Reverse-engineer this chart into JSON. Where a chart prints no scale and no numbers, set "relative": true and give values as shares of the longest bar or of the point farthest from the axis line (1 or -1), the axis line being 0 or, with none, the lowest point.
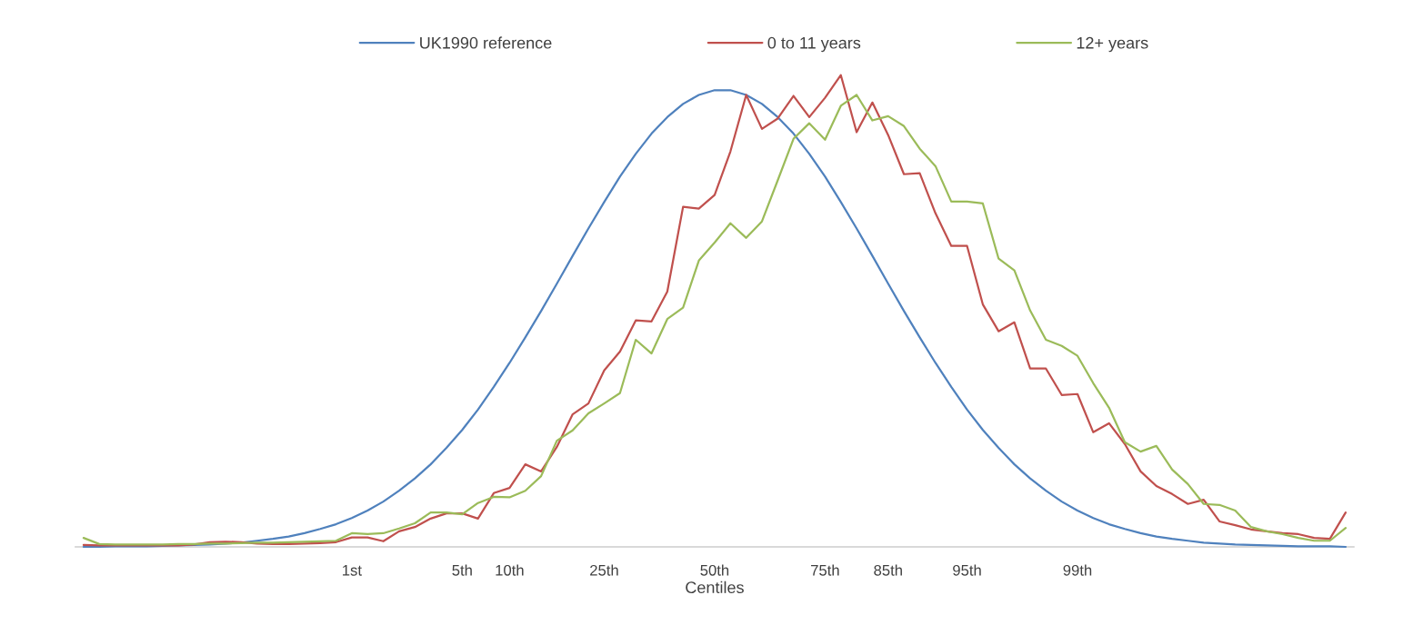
{
  "chart_data": {
    "type": "line",
    "xlabel": "Centiles",
    "relative": true,
    "legend": "top",
    "line_style": "solid",
    "categories": [
      null,
      null,
      null,
      null,
      null,
      null,
      null,
      null,
      null,
      null,
      null,
      null,
      null,
      null,
      null,
      null,
      null,
      "1st",
      null,
      null,
      null,
      null,
      null,
      null,
      "5th",
      null,
      null,
      "10th",
      null,
      null,
      null,
      null,
      null,
      "25th",
      null,
      null,
      null,
      null,
      null,
      null,
      "50th",
      null,
      null,
      null,
      null,
      null,
      null,
      "75th",
      null,
      null,
      null,
      "85th",
      null,
      null,
      null,
      null,
      "95th",
      null,
      null,
      null,
      null,
      null,
      null,
      "99th",
      null,
      null,
      null,
      null,
      null,
      null,
      null,
      null,
      null,
      null,
      null,
      null,
      null,
      null,
      null,
      null,
      null
    ],
    "series": [
      {
        "name": "UK1990 reference",
        "color": "#4f81bd",
        "values": [
          0,
          0,
          0.001,
          0.001,
          0.001,
          0.002,
          0.003,
          0.004,
          0.005,
          0.007,
          0.009,
          0.013,
          0.017,
          0.022,
          0.029,
          0.038,
          0.048,
          0.061,
          0.077,
          0.096,
          0.119,
          0.145,
          0.175,
          0.21,
          0.248,
          0.291,
          0.339,
          0.39,
          0.444,
          0.5,
          0.558,
          0.617,
          0.675,
          0.731,
          0.785,
          0.833,
          0.876,
          0.911,
          0.939,
          0.958,
          0.968,
          0.968,
          0.958,
          0.939,
          0.911,
          0.876,
          0.833,
          0.785,
          0.731,
          0.675,
          0.617,
          0.558,
          0.5,
          0.444,
          0.39,
          0.339,
          0.291,
          0.248,
          0.21,
          0.175,
          0.145,
          0.119,
          0.096,
          0.077,
          0.061,
          0.048,
          0.038,
          0.029,
          0.022,
          0.017,
          0.013,
          0.009,
          0.007,
          0.005,
          0.004,
          0.003,
          0.002,
          0.001,
          0.001,
          0.001,
          0
        ]
      },
      {
        "name": "0 to 11 years",
        "color": "#c0504d",
        "values": [
          0.004,
          0.003,
          0.003,
          0.003,
          0.003,
          0.003,
          0.003,
          0.005,
          0.01,
          0.011,
          0.01,
          0.007,
          0.006,
          0.006,
          0.007,
          0.008,
          0.01,
          0.02,
          0.02,
          0.012,
          0.033,
          0.042,
          0.06,
          0.071,
          0.071,
          0.06,
          0.114,
          0.125,
          0.175,
          0.16,
          0.212,
          0.281,
          0.304,
          0.374,
          0.414,
          0.48,
          0.478,
          0.541,
          0.721,
          0.717,
          0.746,
          0.838,
          0.958,
          0.886,
          0.908,
          0.956,
          0.911,
          0.952,
          1,
          0.879,
          0.942,
          0.873,
          0.79,
          0.792,
          0.707,
          0.638,
          0.638,
          0.514,
          0.457,
          0.476,
          0.378,
          0.378,
          0.322,
          0.324,
          0.243,
          0.262,
          0.218,
          0.16,
          0.129,
          0.112,
          0.091,
          0.1,
          0.054,
          0.046,
          0.037,
          0.033,
          0.029,
          0.027,
          0.019,
          0.017,
          0.073
        ]
      },
      {
        "name": "12+ years",
        "color": "#9bbb59",
        "values": [
          0.019,
          0.006,
          0.005,
          0.005,
          0.005,
          0.005,
          0.006,
          0.006,
          0.007,
          0.007,
          0.008,
          0.009,
          0.009,
          0.01,
          0.011,
          0.012,
          0.013,
          0.029,
          0.027,
          0.029,
          0.039,
          0.05,
          0.073,
          0.073,
          0.069,
          0.093,
          0.106,
          0.105,
          0.119,
          0.15,
          0.225,
          0.247,
          0.283,
          0.304,
          0.326,
          0.439,
          0.41,
          0.483,
          0.507,
          0.607,
          0.645,
          0.686,
          0.655,
          0.69,
          0.777,
          0.865,
          0.898,
          0.863,
          0.935,
          0.958,
          0.904,
          0.913,
          0.892,
          0.844,
          0.807,
          0.732,
          0.732,
          0.728,
          0.611,
          0.586,
          0.501,
          0.439,
          0.426,
          0.405,
          0.347,
          0.295,
          0.222,
          0.202,
          0.214,
          0.164,
          0.133,
          0.091,
          0.089,
          0.077,
          0.042,
          0.033,
          0.027,
          0.019,
          0.013,
          0.013,
          0.04
        ]
      }
    ]
  }
}
